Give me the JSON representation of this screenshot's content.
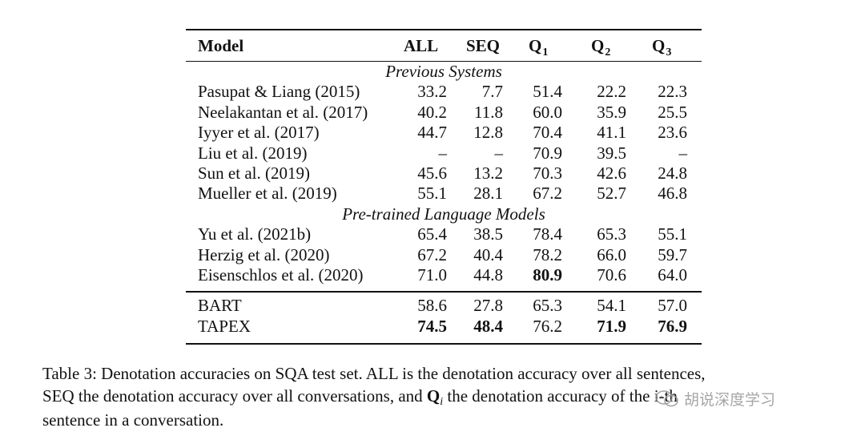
{
  "table": {
    "headers": {
      "model": "Model",
      "all": "ALL",
      "seq": "SEQ",
      "q1": "Q",
      "q1_sub": "1",
      "q2": "Q",
      "q2_sub": "2",
      "q3": "Q",
      "q3_sub": "3"
    },
    "sections": {
      "previous": "Previous Systems",
      "pretrained": "Pre-trained Language Models"
    },
    "previous_rows": [
      {
        "model": "Pasupat & Liang (2015)",
        "all": "33.2",
        "seq": "7.7",
        "q1": "51.4",
        "q2": "22.2",
        "q3": "22.3"
      },
      {
        "model": "Neelakantan et al. (2017)",
        "all": "40.2",
        "seq": "11.8",
        "q1": "60.0",
        "q2": "35.9",
        "q3": "25.5"
      },
      {
        "model": "Iyyer et al. (2017)",
        "all": "44.7",
        "seq": "12.8",
        "q1": "70.4",
        "q2": "41.1",
        "q3": "23.6"
      },
      {
        "model": "Liu et al. (2019)",
        "all": "–",
        "seq": "–",
        "q1": "70.9",
        "q2": "39.5",
        "q3": "–"
      },
      {
        "model": "Sun et al. (2019)",
        "all": "45.6",
        "seq": "13.2",
        "q1": "70.3",
        "q2": "42.6",
        "q3": "24.8"
      },
      {
        "model": "Mueller et al. (2019)",
        "all": "55.1",
        "seq": "28.1",
        "q1": "67.2",
        "q2": "52.7",
        "q3": "46.8"
      }
    ],
    "pretrained_rows": [
      {
        "model": "Yu et al. (2021b)",
        "all": "65.4",
        "seq": "38.5",
        "q1": "78.4",
        "q2": "65.3",
        "q3": "55.1"
      },
      {
        "model": "Herzig et al. (2020)",
        "all": "67.2",
        "seq": "40.4",
        "q1": "78.2",
        "q2": "66.0",
        "q3": "59.7"
      },
      {
        "model": "Eisenschlos et al. (2020)",
        "all": "71.0",
        "seq": "44.8",
        "q1": "80.9",
        "q2": "70.6",
        "q3": "64.0"
      }
    ],
    "ours_rows": [
      {
        "model": "BART",
        "all": "58.6",
        "seq": "27.8",
        "q1": "65.3",
        "q2": "54.1",
        "q3": "57.0"
      },
      {
        "model": "TAPEX",
        "all": "74.5",
        "seq": "48.4",
        "q1": "76.2",
        "q2": "71.9",
        "q3": "76.9"
      }
    ]
  },
  "caption": {
    "line1": "Table 3: Denotation accuracies on SQA test set. ALL is the denotation accuracy over all sentences,",
    "line2a": "SEQ the denotation accuracy over all conversations, and ",
    "line2_q": "Q",
    "line2_sub": "i",
    "line2b": " the denotation accuracy of the i-th",
    "line3": "sentence in a conversation."
  },
  "watermark": {
    "text": "胡说深度学习",
    "icon": "wechat-icon"
  }
}
